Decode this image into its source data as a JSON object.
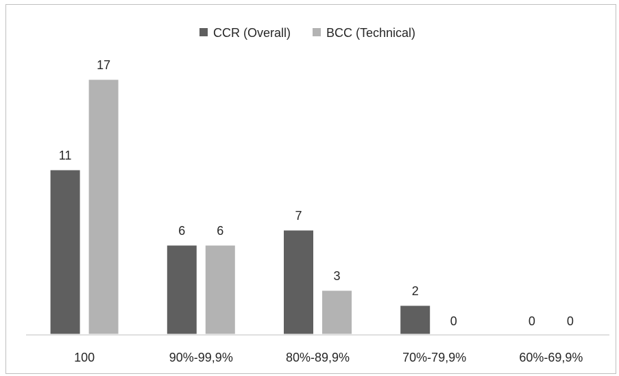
{
  "chart_data": {
    "type": "bar",
    "categories": [
      "100",
      "90%-99,9%",
      "80%-89,9%",
      "70%-79,9%",
      "60%-69,9%"
    ],
    "series": [
      {
        "name": "CCR (Overall)",
        "values": [
          11,
          6,
          7,
          2,
          0
        ],
        "color": "#5f5f5f"
      },
      {
        "name": "BCC (Technical)",
        "values": [
          17,
          6,
          3,
          0,
          0
        ],
        "color": "#b3b3b3"
      }
    ],
    "ylim": [
      0,
      20
    ],
    "grid": false,
    "legend": "top-center",
    "data_labels": true
  }
}
